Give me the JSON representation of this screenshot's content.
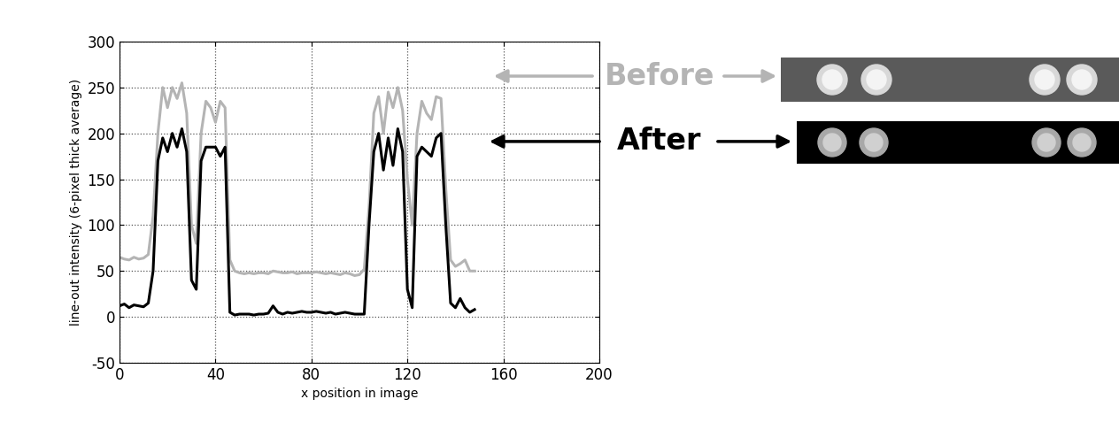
{
  "chart_data": {
    "type": "line",
    "xlabel": "x position in image",
    "ylabel": "line-out intensity (6-pixel thick average)",
    "xlim": [
      0,
      200
    ],
    "ylim": [
      -50,
      300
    ],
    "xticks": [
      0,
      40,
      80,
      120,
      160,
      200
    ],
    "yticks": [
      -50,
      0,
      50,
      100,
      150,
      200,
      250,
      300
    ],
    "grid": true,
    "x": [
      0,
      2,
      4,
      6,
      8,
      10,
      12,
      14,
      16,
      18,
      20,
      22,
      24,
      26,
      28,
      30,
      32,
      34,
      36,
      38,
      40,
      42,
      44,
      46,
      48,
      50,
      52,
      54,
      56,
      58,
      60,
      62,
      64,
      66,
      68,
      70,
      72,
      74,
      76,
      78,
      80,
      82,
      84,
      86,
      88,
      90,
      92,
      94,
      96,
      98,
      100,
      102,
      104,
      106,
      108,
      110,
      112,
      114,
      116,
      118,
      120,
      122,
      124,
      126,
      128,
      130,
      132,
      134,
      136,
      138,
      140,
      142,
      144,
      146,
      148
    ],
    "series": [
      {
        "name": "Before",
        "color": "#b4b4b4",
        "values": [
          65,
          63,
          62,
          65,
          63,
          64,
          68,
          110,
          200,
          250,
          228,
          250,
          238,
          255,
          222,
          100,
          80,
          200,
          235,
          228,
          212,
          235,
          228,
          62,
          50,
          48,
          47,
          48,
          47,
          48,
          48,
          47,
          50,
          49,
          48,
          48,
          49,
          47,
          48,
          48,
          48,
          49,
          48,
          47,
          48,
          47,
          46,
          48,
          47,
          45,
          46,
          52,
          120,
          222,
          240,
          200,
          245,
          228,
          250,
          225,
          150,
          100,
          200,
          235,
          222,
          215,
          240,
          238,
          140,
          62,
          55,
          58,
          62,
          50,
          50
        ]
      },
      {
        "name": "After",
        "color": "#000000",
        "values": [
          12,
          14,
          10,
          13,
          12,
          11,
          15,
          50,
          170,
          195,
          180,
          200,
          185,
          205,
          180,
          40,
          30,
          170,
          185,
          185,
          185,
          175,
          185,
          5,
          2,
          3,
          3,
          3,
          2,
          3,
          3,
          4,
          12,
          5,
          3,
          5,
          4,
          5,
          6,
          5,
          5,
          6,
          5,
          4,
          5,
          3,
          4,
          5,
          4,
          3,
          3,
          3,
          100,
          180,
          200,
          160,
          195,
          165,
          205,
          180,
          30,
          10,
          175,
          185,
          180,
          175,
          195,
          200,
          100,
          15,
          10,
          20,
          10,
          5,
          8
        ]
      }
    ]
  }
}
